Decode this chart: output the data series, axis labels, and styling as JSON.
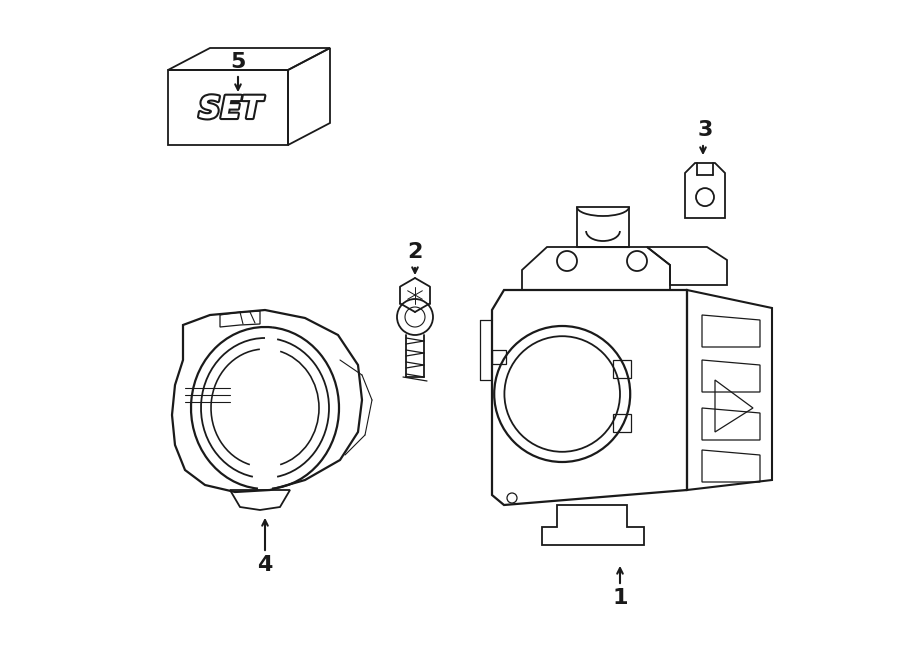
{
  "bg_color": "#ffffff",
  "line_color": "#1a1a1a",
  "line_width": 1.3,
  "fig_width": 9.0,
  "fig_height": 6.61,
  "dpi": 100
}
